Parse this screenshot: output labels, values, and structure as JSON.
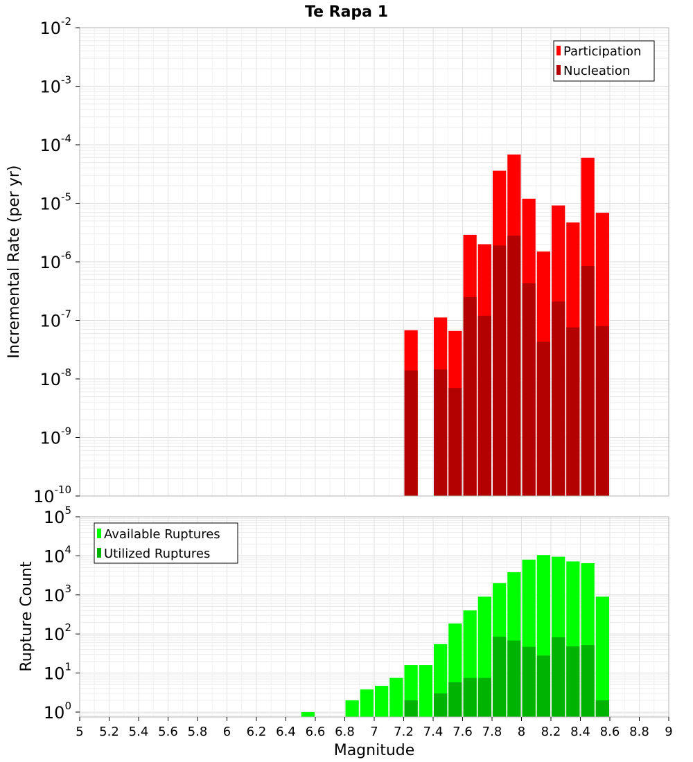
{
  "chart_data": [
    {
      "type": "bar",
      "title": "Te Rapa 1",
      "ylabel": "Incremental Rate (per yr)",
      "xlabel": "",
      "yscale": "log",
      "ylim": [
        1e-10,
        0.01
      ],
      "xlim": [
        5,
        9
      ],
      "bar_width": 0.1,
      "legend": {
        "placement": "top-right"
      },
      "series": [
        {
          "name": "Participation",
          "color": "#ff0000",
          "points": [
            [
              7.25,
              6.8e-08
            ],
            [
              7.45,
              1.12e-07
            ],
            [
              7.55,
              6.6e-08
            ],
            [
              7.65,
              2.9e-06
            ],
            [
              7.75,
              2e-06
            ],
            [
              7.85,
              3.6e-05
            ],
            [
              7.95,
              6.8e-05
            ],
            [
              8.05,
              1.2e-05
            ],
            [
              8.15,
              1.5e-06
            ],
            [
              8.25,
              9.2e-06
            ],
            [
              8.35,
              4.7e-06
            ],
            [
              8.45,
              6e-05
            ],
            [
              8.55,
              6.9e-06
            ]
          ]
        },
        {
          "name": "Nucleation",
          "color": "#b30000",
          "points": [
            [
              7.25,
              1.4e-08
            ],
            [
              7.45,
              1.45e-08
            ],
            [
              7.55,
              7e-09
            ],
            [
              7.65,
              2.5e-07
            ],
            [
              7.75,
              1.2e-07
            ],
            [
              7.85,
              1.9e-06
            ],
            [
              7.95,
              2.8e-06
            ],
            [
              8.05,
              4.3e-07
            ],
            [
              8.15,
              4.3e-08
            ],
            [
              8.25,
              2.1e-07
            ],
            [
              8.35,
              7.6e-08
            ],
            [
              8.45,
              8.5e-07
            ],
            [
              8.55,
              8e-08
            ]
          ]
        }
      ]
    },
    {
      "type": "bar",
      "title": "",
      "ylabel": "Rupture Count",
      "xlabel": "Magnitude",
      "yscale": "log",
      "ylim": [
        0.75,
        100000.0
      ],
      "xlim": [
        5,
        9
      ],
      "bar_width": 0.1,
      "xticks": [
        "5",
        "5.2",
        "5.4",
        "5.6",
        "5.8",
        "6",
        "6.2",
        "6.4",
        "6.6",
        "6.8",
        "7",
        "7.2",
        "7.4",
        "7.6",
        "7.8",
        "8",
        "8.2",
        "8.4",
        "8.6",
        "8.8",
        "9"
      ],
      "legend": {
        "placement": "top-left"
      },
      "series": [
        {
          "name": "Available Ruptures",
          "color": "#00ff00",
          "points": [
            [
              6.55,
              1
            ],
            [
              6.85,
              2
            ],
            [
              6.95,
              3.8
            ],
            [
              7.05,
              4.7
            ],
            [
              7.15,
              7.5
            ],
            [
              7.25,
              16
            ],
            [
              7.35,
              16
            ],
            [
              7.45,
              55
            ],
            [
              7.55,
              185
            ],
            [
              7.65,
              400
            ],
            [
              7.75,
              900
            ],
            [
              7.85,
              2000
            ],
            [
              7.95,
              3800
            ],
            [
              8.05,
              8000
            ],
            [
              8.15,
              10500
            ],
            [
              8.25,
              9500
            ],
            [
              8.35,
              7200
            ],
            [
              8.45,
              6500
            ],
            [
              8.55,
              900
            ]
          ]
        },
        {
          "name": "Utilized Ruptures",
          "color": "#00b300",
          "points": [
            [
              7.25,
              2
            ],
            [
              7.45,
              3
            ],
            [
              7.55,
              5.8
            ],
            [
              7.65,
              7.5
            ],
            [
              7.75,
              7.5
            ],
            [
              7.85,
              85
            ],
            [
              7.95,
              68
            ],
            [
              8.05,
              47
            ],
            [
              8.15,
              28
            ],
            [
              8.25,
              82
            ],
            [
              8.35,
              48
            ],
            [
              8.45,
              52
            ],
            [
              8.55,
              2
            ]
          ]
        }
      ]
    }
  ]
}
